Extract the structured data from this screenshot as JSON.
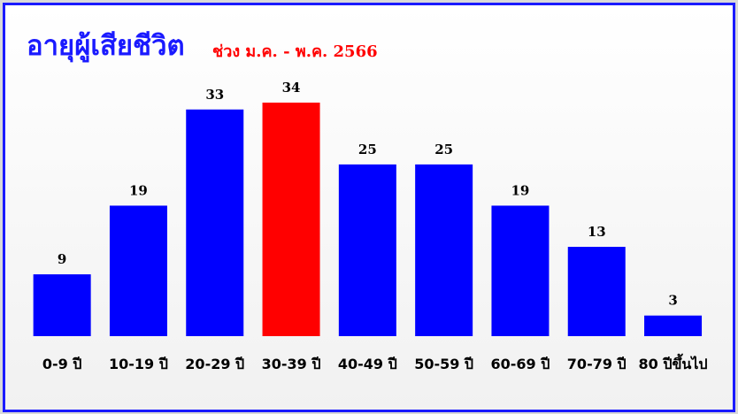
{
  "chart_data": {
    "type": "bar",
    "title": "อายุผู้เสียชีวิต",
    "subtitle": "ช่วง ม.ค. -  พ.ค. 2566",
    "categories": [
      "0-9 ปี",
      "10-19 ปี",
      "20-29 ปี",
      "30-39 ปี",
      "40-49 ปี",
      "50-59 ปี",
      "60-69 ปี",
      "70-79 ปี",
      "80 ปีขึ้นไป"
    ],
    "values": [
      9,
      19,
      33,
      34,
      25,
      25,
      19,
      13,
      3
    ],
    "colors": [
      "#0000ff",
      "#0000ff",
      "#0000ff",
      "#ff0000",
      "#0000ff",
      "#0000ff",
      "#0000ff",
      "#0000ff",
      "#0000ff"
    ]
  }
}
